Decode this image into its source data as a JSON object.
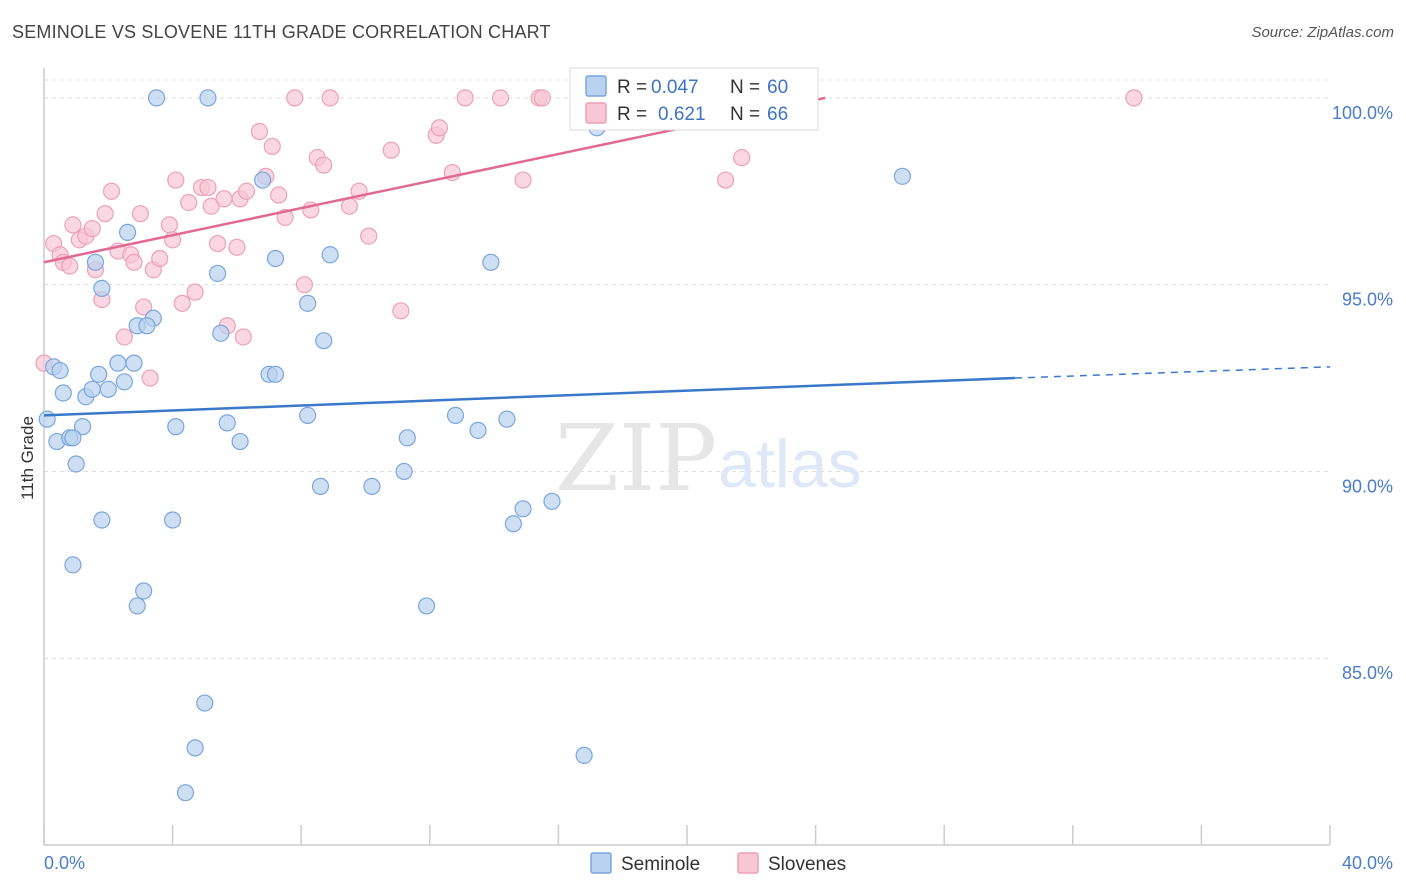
{
  "title": "SEMINOLE VS SLOVENE 11TH GRADE CORRELATION CHART",
  "source": "Source: ZipAtlas.com",
  "watermark": {
    "zip": "ZIP",
    "atlas": "atlas"
  },
  "legend": {
    "rows": [
      {
        "r_label": "R =",
        "r_value": "0.047",
        "n_label": "N =",
        "n_value": "60"
      },
      {
        "r_label": "R =",
        "r_value": "0.621",
        "n_label": "N =",
        "n_value": "66"
      }
    ]
  },
  "bottom_legend": [
    "Seminole",
    "Slovenes"
  ],
  "colors": {
    "seminole_fill": "#b9d2f0",
    "seminole_stroke": "#7aa6de",
    "seminole_line": "#3a78c9",
    "slovenes_fill": "#f8c6d5",
    "slovenes_stroke": "#eda0b7",
    "slovenes_line": "#e06a92",
    "tick_text": "#4a7cc9",
    "grid": "#dddddd"
  },
  "chart_data": {
    "type": "scatter",
    "title": "SEMINOLE VS SLOVENE 11TH GRADE CORRELATION CHART",
    "xlabel": "",
    "ylabel": "11th Grade",
    "xlim": [
      0,
      40
    ],
    "ylim": [
      80,
      100.8
    ],
    "x_tick_labels": [
      "0.0%",
      "40.0%"
    ],
    "y_ticks": [
      85,
      90,
      95,
      100
    ],
    "y_tick_labels": [
      "85.0%",
      "90.0%",
      "95.0%",
      "100.0%"
    ],
    "grid": true,
    "legend_position": "top-center",
    "series": [
      {
        "name": "Seminole",
        "r": 0.047,
        "n": 60,
        "trend": {
          "x": [
            0,
            30.2
          ],
          "y": [
            91.5,
            92.5
          ],
          "dashed_to": [
            40,
            92.8
          ]
        },
        "points": [
          [
            0.1,
            91.4
          ],
          [
            0.3,
            92.8
          ],
          [
            0.4,
            90.8
          ],
          [
            0.5,
            92.7
          ],
          [
            0.6,
            92.1
          ],
          [
            0.8,
            90.9
          ],
          [
            1.0,
            90.2
          ],
          [
            1.2,
            91.2
          ],
          [
            1.3,
            92.0
          ],
          [
            1.5,
            92.2
          ],
          [
            1.7,
            92.6
          ],
          [
            1.8,
            94.9
          ],
          [
            1.6,
            95.6
          ],
          [
            2.0,
            92.2
          ],
          [
            2.3,
            92.9
          ],
          [
            2.5,
            92.4
          ],
          [
            2.9,
            93.9
          ],
          [
            2.6,
            96.4
          ],
          [
            3.4,
            94.1
          ],
          [
            3.2,
            93.9
          ],
          [
            2.8,
            92.9
          ],
          [
            3.5,
            100.0
          ],
          [
            1.8,
            88.7
          ],
          [
            0.9,
            87.5
          ],
          [
            3.1,
            86.8
          ],
          [
            2.9,
            86.4
          ],
          [
            4.0,
            88.7
          ],
          [
            4.1,
            91.2
          ],
          [
            5.1,
            100.0
          ],
          [
            5.4,
            95.3
          ],
          [
            5.5,
            93.7
          ],
          [
            5.7,
            91.3
          ],
          [
            6.1,
            90.8
          ],
          [
            6.8,
            97.8
          ],
          [
            7.0,
            92.6
          ],
          [
            7.2,
            92.6
          ],
          [
            7.2,
            95.7
          ],
          [
            8.2,
            91.5
          ],
          [
            8.2,
            94.5
          ],
          [
            8.7,
            93.5
          ],
          [
            8.9,
            95.8
          ],
          [
            8.6,
            89.6
          ],
          [
            10.2,
            89.6
          ],
          [
            11.2,
            90.0
          ],
          [
            11.3,
            90.9
          ],
          [
            11.9,
            86.4
          ],
          [
            12.8,
            91.5
          ],
          [
            13.5,
            91.1
          ],
          [
            13.9,
            95.6
          ],
          [
            14.4,
            91.4
          ],
          [
            14.9,
            89.0
          ],
          [
            14.6,
            88.6
          ],
          [
            15.8,
            89.2
          ],
          [
            16.8,
            82.4
          ],
          [
            17.2,
            99.2
          ],
          [
            26.7,
            97.9
          ],
          [
            5.0,
            83.8
          ],
          [
            4.7,
            82.6
          ],
          [
            4.4,
            81.4
          ],
          [
            0.9,
            90.9
          ]
        ]
      },
      {
        "name": "Slovenes",
        "r": 0.621,
        "n": 66,
        "trend": {
          "x": [
            0,
            24.3
          ],
          "y": [
            95.6,
            100.0
          ]
        },
        "points": [
          [
            0.0,
            92.9
          ],
          [
            0.3,
            96.1
          ],
          [
            0.5,
            95.8
          ],
          [
            0.6,
            95.6
          ],
          [
            0.8,
            95.5
          ],
          [
            0.9,
            96.6
          ],
          [
            1.1,
            96.2
          ],
          [
            1.3,
            96.3
          ],
          [
            1.5,
            96.5
          ],
          [
            1.6,
            95.4
          ],
          [
            1.8,
            94.6
          ],
          [
            1.9,
            96.9
          ],
          [
            2.1,
            97.5
          ],
          [
            2.3,
            95.9
          ],
          [
            2.5,
            93.6
          ],
          [
            2.7,
            95.8
          ],
          [
            2.8,
            95.6
          ],
          [
            3.0,
            96.9
          ],
          [
            3.1,
            94.4
          ],
          [
            3.3,
            92.5
          ],
          [
            3.4,
            95.4
          ],
          [
            3.6,
            95.7
          ],
          [
            3.9,
            96.6
          ],
          [
            4.0,
            96.2
          ],
          [
            4.1,
            97.8
          ],
          [
            4.3,
            94.5
          ],
          [
            4.5,
            97.2
          ],
          [
            4.7,
            94.8
          ],
          [
            4.9,
            97.6
          ],
          [
            5.1,
            97.6
          ],
          [
            5.2,
            97.1
          ],
          [
            5.4,
            96.1
          ],
          [
            5.6,
            97.3
          ],
          [
            5.7,
            93.9
          ],
          [
            6.0,
            96.0
          ],
          [
            6.1,
            97.3
          ],
          [
            6.2,
            93.6
          ],
          [
            6.3,
            97.5
          ],
          [
            6.7,
            99.1
          ],
          [
            6.9,
            97.9
          ],
          [
            7.1,
            98.7
          ],
          [
            7.3,
            97.4
          ],
          [
            7.5,
            96.8
          ],
          [
            7.8,
            100.0
          ],
          [
            8.1,
            95.0
          ],
          [
            8.3,
            97.0
          ],
          [
            8.5,
            98.4
          ],
          [
            8.7,
            98.2
          ],
          [
            8.9,
            100.0
          ],
          [
            9.5,
            97.1
          ],
          [
            9.8,
            97.5
          ],
          [
            10.1,
            96.3
          ],
          [
            10.8,
            98.6
          ],
          [
            11.1,
            94.3
          ],
          [
            12.2,
            99.0
          ],
          [
            12.3,
            99.2
          ],
          [
            12.7,
            98.0
          ],
          [
            13.1,
            100.0
          ],
          [
            14.2,
            100.0
          ],
          [
            14.9,
            97.8
          ],
          [
            15.4,
            100.0
          ],
          [
            15.5,
            100.0
          ],
          [
            21.2,
            97.8
          ],
          [
            21.7,
            98.4
          ],
          [
            33.9,
            100.0
          ],
          [
            19.7,
            100.0
          ]
        ]
      }
    ]
  }
}
